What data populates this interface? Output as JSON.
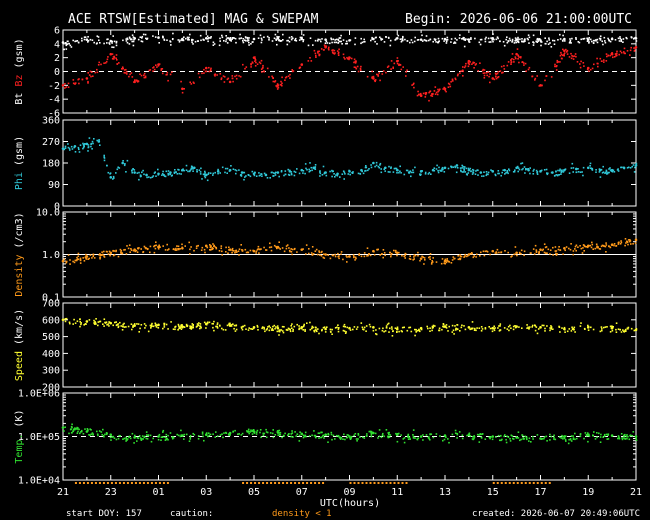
{
  "header": {
    "title": "ACE RTSW[Estimated] MAG & SWEPAM",
    "begin": "Begin: 2026-06-06 21:00:00UTC"
  },
  "footer": {
    "start_doy": "start DOY: 157",
    "caution": "caution:",
    "density_note": "density < 1",
    "created": "created: 2026-06-07 20:49:06UTC",
    "xlabel": "UTC(hours)"
  },
  "colors": {
    "bt": "#ffffff",
    "bz": "#ff2020",
    "phi": "#30c8d8",
    "density": "#ff9a1a",
    "speed": "#ffff30",
    "temp": "#30e030",
    "caution": "#ff9a1a"
  },
  "chart_data": {
    "type": "scatter",
    "x_ticks": [
      "21",
      "23",
      "01",
      "03",
      "05",
      "07",
      "09",
      "11",
      "13",
      "15",
      "17",
      "19",
      "21"
    ],
    "x_range_hours": [
      0,
      24
    ],
    "panels": [
      {
        "name": "mag",
        "ylabel_parts": [
          "Bt",
          "Bz",
          "(gsm)"
        ],
        "ylabel_colors": [
          "#ffffff",
          "#ff2020",
          "#ffffff"
        ],
        "ylim": [
          -6,
          6
        ],
        "yticks": [
          "6",
          "4",
          "2",
          "0",
          "-2",
          "-4",
          "-6"
        ],
        "scale": "linear",
        "dashed_zero": true,
        "series": [
          {
            "name": "Bt",
            "color": "#ffffff",
            "x": [
              0,
              1,
              2,
              3,
              4,
              5,
              6,
              7,
              8,
              9,
              10,
              11,
              12,
              13,
              14,
              15,
              16,
              17,
              18,
              19,
              20,
              21,
              22,
              23,
              24
            ],
            "y": [
              4.2,
              4.6,
              4.4,
              4.8,
              4.9,
              4.7,
              4.8,
              4.6,
              4.7,
              4.8,
              4.7,
              4.6,
              4.5,
              4.7,
              4.8,
              4.6,
              4.7,
              4.6,
              4.8,
              4.6,
              4.5,
              4.7,
              4.6,
              4.7,
              4.8
            ]
          },
          {
            "name": "Bz",
            "color": "#ff2020",
            "x": [
              0,
              1,
              2,
              3,
              4,
              5,
              6,
              7,
              8,
              9,
              10,
              11,
              12,
              13,
              14,
              15,
              16,
              17,
              18,
              19,
              20,
              21,
              22,
              23,
              24
            ],
            "y": [
              -2.0,
              -1.0,
              2.5,
              -1.5,
              1.0,
              -2.5,
              0.5,
              -1.5,
              2.0,
              -2.0,
              1.0,
              3.5,
              2.0,
              -1.0,
              1.5,
              -3.5,
              -2.5,
              1.5,
              -1.0,
              2.5,
              -2.0,
              3.0,
              0.5,
              2.5,
              3.5
            ]
          }
        ]
      },
      {
        "name": "phi",
        "ylabel_parts": [
          "Phi",
          "(gsm)"
        ],
        "ylabel_colors": [
          "#30c8d8",
          "#ffffff"
        ],
        "ylim": [
          0,
          360
        ],
        "yticks": [
          "360",
          "270",
          "180",
          "90",
          "0"
        ],
        "scale": "linear",
        "series": [
          {
            "name": "Phi",
            "color": "#30c8d8",
            "x": [
              0,
              0.5,
              1,
              1.5,
              2,
              2.5,
              3,
              3.5,
              4,
              4.5,
              5,
              5.5,
              6,
              6.5,
              7,
              7.5,
              8,
              8.5,
              9,
              9.5,
              10,
              10.5,
              11,
              11.5,
              12,
              12.5,
              13,
              13.5,
              14,
              14.5,
              15,
              15.5,
              16,
              16.5,
              17,
              17.5,
              18,
              18.5,
              19,
              19.5,
              20,
              20.5,
              21,
              21.5,
              22,
              22.5,
              23,
              23.5,
              24
            ],
            "y": [
              240,
              250,
              260,
              270,
              120,
              180,
              140,
              130,
              135,
              140,
              150,
              160,
              130,
              145,
              150,
              140,
              135,
              130,
              140,
              145,
              150,
              160,
              140,
              135,
              145,
              150,
              180,
              160,
              150,
              140,
              145,
              150,
              160,
              170,
              150,
              140,
              145,
              150,
              160,
              150,
              145,
              140,
              150,
              155,
              160,
              150,
              150,
              160,
              170
            ]
          }
        ]
      },
      {
        "name": "density",
        "ylabel_parts": [
          "Density",
          "(/cm3)"
        ],
        "ylabel_colors": [
          "#ff9a1a",
          "#ffffff"
        ],
        "ylim": [
          0.1,
          10
        ],
        "yticks": [
          "10.0",
          "1.0",
          "0.1"
        ],
        "scale": "log",
        "hline": 1.0,
        "series": [
          {
            "name": "Density",
            "color": "#ff9a1a",
            "x": [
              0,
              1,
              2,
              3,
              4,
              5,
              6,
              7,
              8,
              9,
              10,
              11,
              12,
              13,
              14,
              15,
              16,
              17,
              18,
              19,
              20,
              21,
              22,
              23,
              24
            ],
            "y": [
              0.7,
              0.9,
              1.1,
              1.3,
              1.5,
              1.4,
              1.6,
              1.3,
              1.2,
              1.5,
              1.3,
              1.0,
              0.9,
              1.2,
              1.1,
              0.8,
              0.7,
              1.0,
              1.2,
              1.1,
              1.3,
              1.4,
              1.6,
              1.7,
              2.2
            ]
          }
        ]
      },
      {
        "name": "speed",
        "ylabel_parts": [
          "Speed",
          "(km/s)"
        ],
        "ylabel_colors": [
          "#ffff30",
          "#ffffff"
        ],
        "ylim": [
          200,
          700
        ],
        "yticks": [
          "700",
          "600",
          "500",
          "400",
          "300",
          "200"
        ],
        "scale": "linear",
        "series": [
          {
            "name": "Speed",
            "color": "#ffff30",
            "x": [
              0,
              1,
              2,
              3,
              4,
              5,
              6,
              7,
              8,
              9,
              10,
              11,
              12,
              13,
              14,
              15,
              16,
              17,
              18,
              19,
              20,
              21,
              22,
              23,
              24
            ],
            "y": [
              600,
              590,
              580,
              565,
              570,
              560,
              575,
              565,
              555,
              550,
              555,
              545,
              550,
              555,
              545,
              550,
              560,
              555,
              550,
              560,
              555,
              545,
              555,
              550,
              540
            ]
          }
        ]
      },
      {
        "name": "temp",
        "ylabel_parts": [
          "Temp.",
          "(K)"
        ],
        "ylabel_colors": [
          "#30e030",
          "#ffffff"
        ],
        "ylim": [
          10000,
          1000000
        ],
        "yticks": [
          "1.0E+06",
          "1.0E+05",
          "1.0E+04"
        ],
        "scale": "log",
        "dashed_hline": 100000,
        "series": [
          {
            "name": "Temp",
            "color": "#30e030",
            "x": [
              0,
              1,
              2,
              3,
              4,
              5,
              6,
              7,
              8,
              9,
              10,
              11,
              12,
              13,
              14,
              15,
              16,
              17,
              18,
              19,
              20,
              21,
              22,
              23,
              24
            ],
            "y": [
              160000,
              130000,
              110000,
              95000,
              100000,
              105000,
              110000,
              120000,
              130000,
              125000,
              115000,
              110000,
              100000,
              120000,
              110000,
              100000,
              105000,
              110000,
              100000,
              95000,
              90000,
              100000,
              110000,
              105000,
              100000
            ]
          }
        ]
      }
    ]
  }
}
